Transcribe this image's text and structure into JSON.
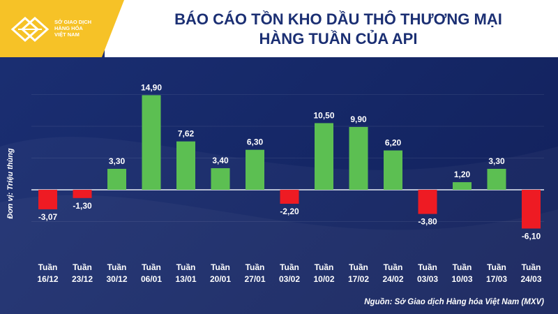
{
  "header": {
    "title_line1": "BÁO CÁO TỒN KHO DẦU THÔ THƯƠNG MẠI",
    "title_line2": "HÀNG TUẦN CỦA API",
    "logo_lines": [
      "SỞ GIAO DỊCH",
      "HÀNG HÓA",
      "VIỆT NAM"
    ]
  },
  "footer": {
    "source": "Nguồn: Sở Giao dịch Hàng hóa Việt Nam (MXV)"
  },
  "colors": {
    "positive": "#5cbf52",
    "negative": "#ee1b23",
    "background": "#1b2f73",
    "logo": "#f6c227"
  },
  "chart_data": {
    "type": "bar",
    "title": "BÁO CÁO TỒN KHO DẦU THÔ THƯƠNG MẠI HÀNG TUẦN CỦA API",
    "ylabel": "Đơn vị: Triệu thùng",
    "xlabel": "",
    "categories": [
      [
        "Tuần",
        "16/12"
      ],
      [
        "Tuần",
        "23/12"
      ],
      [
        "Tuần",
        "30/12"
      ],
      [
        "Tuần",
        "06/01"
      ],
      [
        "Tuần",
        "13/01"
      ],
      [
        "Tuần",
        "20/01"
      ],
      [
        "Tuần",
        "27/01"
      ],
      [
        "Tuần",
        "03/02"
      ],
      [
        "Tuần",
        "10/02"
      ],
      [
        "Tuần",
        "17/02"
      ],
      [
        "Tuần",
        "24/02"
      ],
      [
        "Tuần",
        "03/03"
      ],
      [
        "Tuần",
        "10/03"
      ],
      [
        "Tuần",
        "17/03"
      ],
      [
        "Tuần",
        "24/03"
      ]
    ],
    "values": [
      -3.07,
      -1.3,
      3.3,
      14.9,
      7.62,
      3.4,
      6.3,
      -2.2,
      10.5,
      9.9,
      6.2,
      -3.8,
      1.2,
      3.3,
      -6.1
    ],
    "labels": [
      "-3,07",
      "-1,30",
      "3,30",
      "14,90",
      "7,62",
      "3,40",
      "6,30",
      "-2,20",
      "10,50",
      "9,90",
      "6,20",
      "-3,80",
      "1,20",
      "3,30",
      "-6,10"
    ],
    "grid": true
  }
}
